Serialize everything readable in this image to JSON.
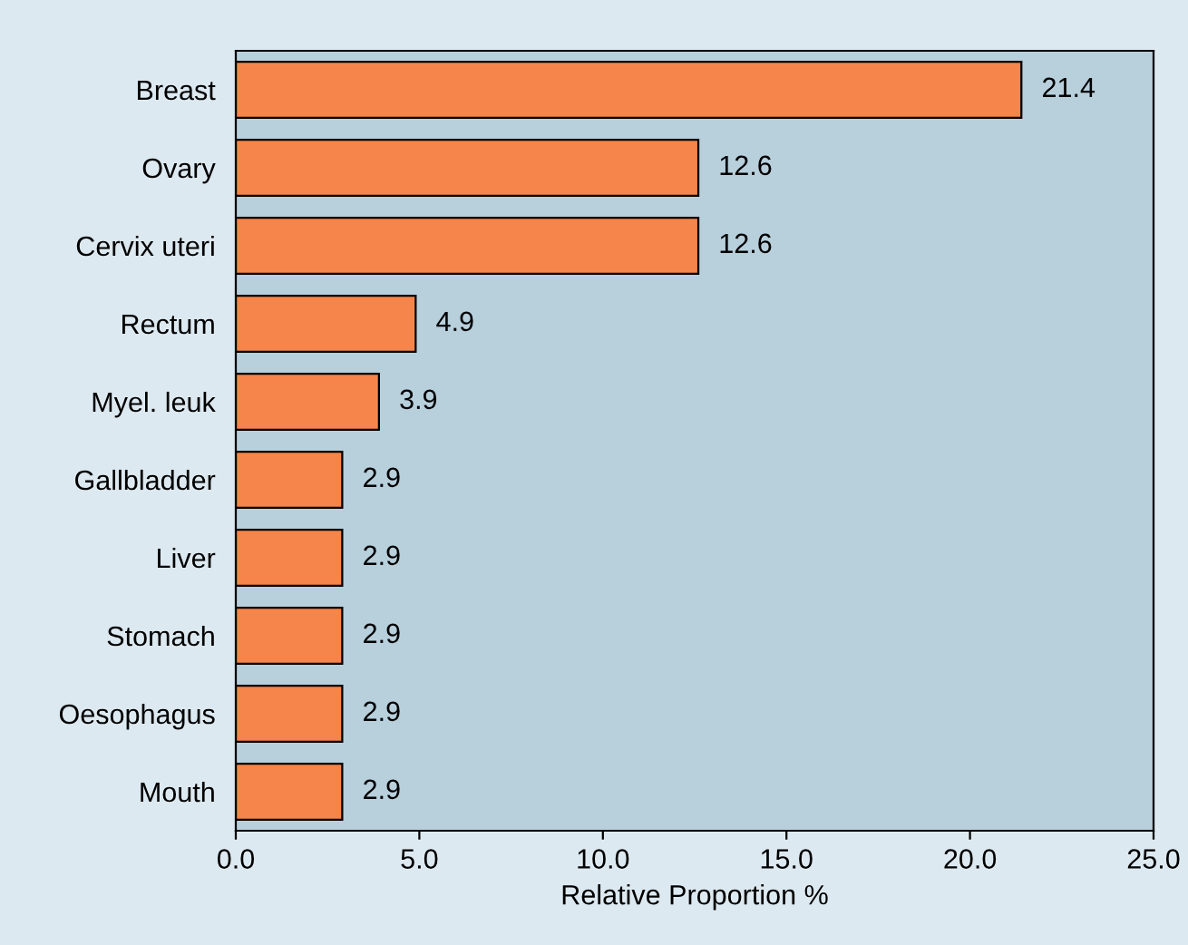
{
  "chart_data": {
    "type": "bar",
    "orientation": "horizontal",
    "xlabel": "Relative Proportion %",
    "categories": [
      "Breast",
      "Ovary",
      "Cervix uteri",
      "Rectum",
      "Myel. leuk",
      "Gallbladder",
      "Liver",
      "Stomach",
      "Oesophagus",
      "Mouth"
    ],
    "values": [
      21.4,
      12.6,
      12.6,
      4.9,
      3.9,
      2.9,
      2.9,
      2.9,
      2.9,
      2.9
    ],
    "color": "#f5854a",
    "xlim": [
      0,
      25
    ],
    "xticks": [
      {
        "value": 0,
        "label": "0.0"
      },
      {
        "value": 5,
        "label": "5.0"
      },
      {
        "value": 10,
        "label": "10.0"
      },
      {
        "value": 15,
        "label": "15.0"
      },
      {
        "value": 20,
        "label": "20.0"
      },
      {
        "value": 25,
        "label": "25.0"
      }
    ],
    "data_labels": true,
    "grid": false
  }
}
